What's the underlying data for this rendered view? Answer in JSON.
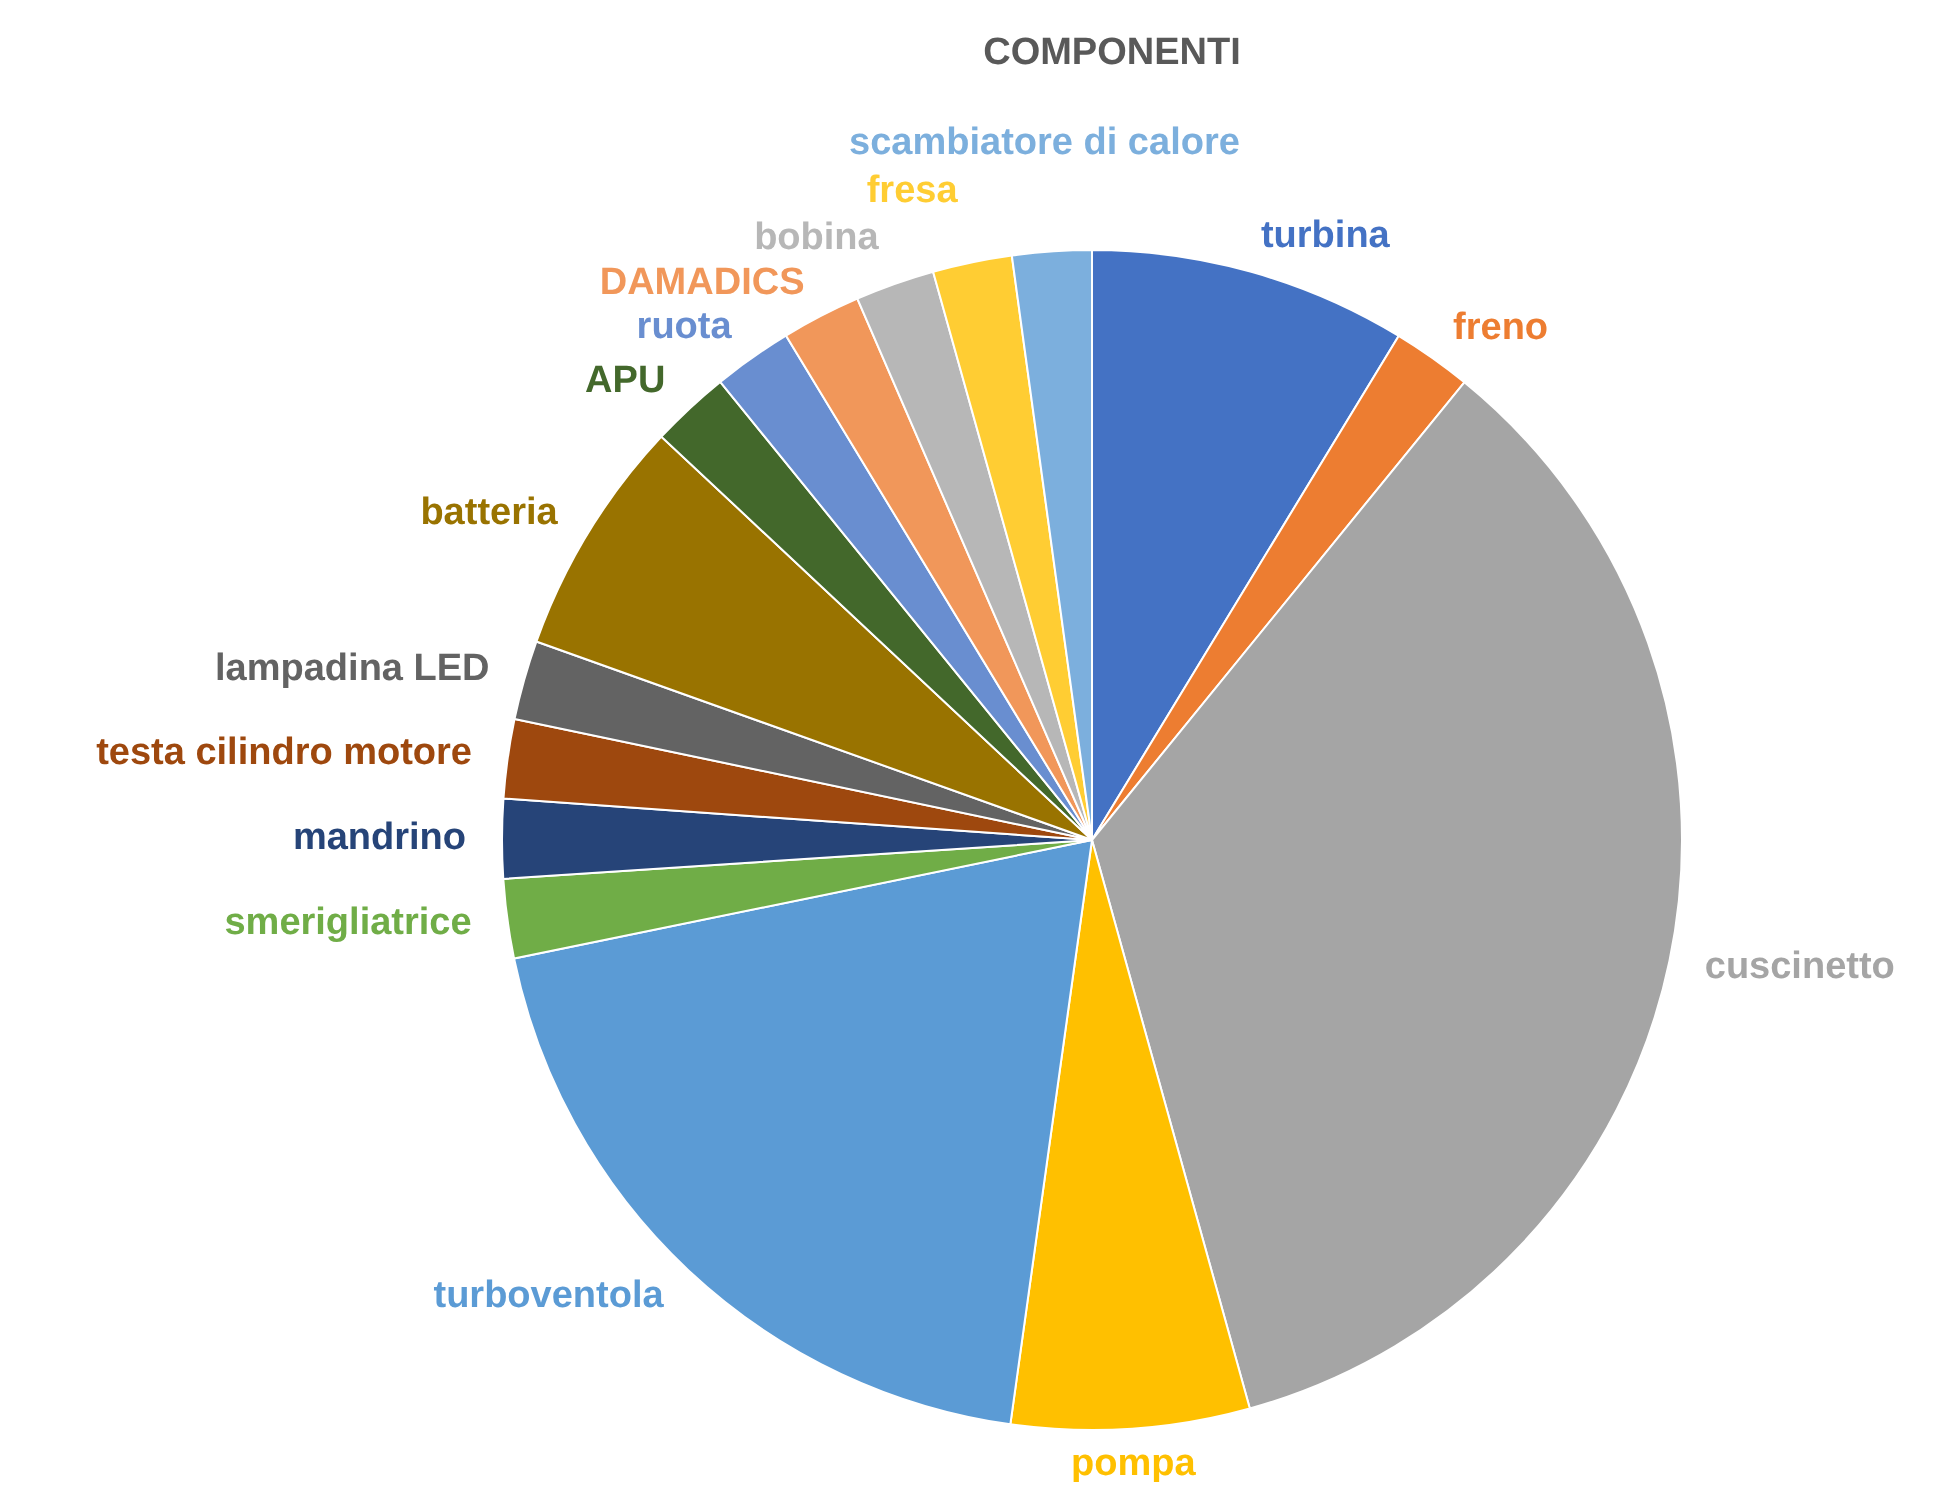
{
  "chart_data": {
    "type": "pie",
    "title": "COMPONENTI",
    "categories": [
      "turbina",
      "freno",
      "cuscinetto",
      "pompa",
      "turboventola",
      "smerigliatrice",
      "mandrino",
      "testa cilindro motore",
      "lampadina LED",
      "batteria",
      "APU",
      "ruota",
      "DAMADICS",
      "bobina",
      "fresa",
      "scambiatore di calore"
    ],
    "values": [
      8.7,
      2.17,
      34.82,
      6.52,
      19.57,
      2.17,
      2.17,
      2.17,
      2.17,
      6.52,
      2.17,
      2.17,
      2.17,
      2.17,
      2.17,
      2.17
    ],
    "colors": [
      "#4472c4",
      "#ed7d31",
      "#a5a5a5",
      "#ffc000",
      "#5b9bd5",
      "#70ad47",
      "#264478",
      "#9e480e",
      "#636363",
      "#997300",
      "#43682b",
      "#698ed0",
      "#f1975a",
      "#b7b7b7",
      "#ffcd33",
      "#7cafdd"
    ],
    "legend": false
  }
}
